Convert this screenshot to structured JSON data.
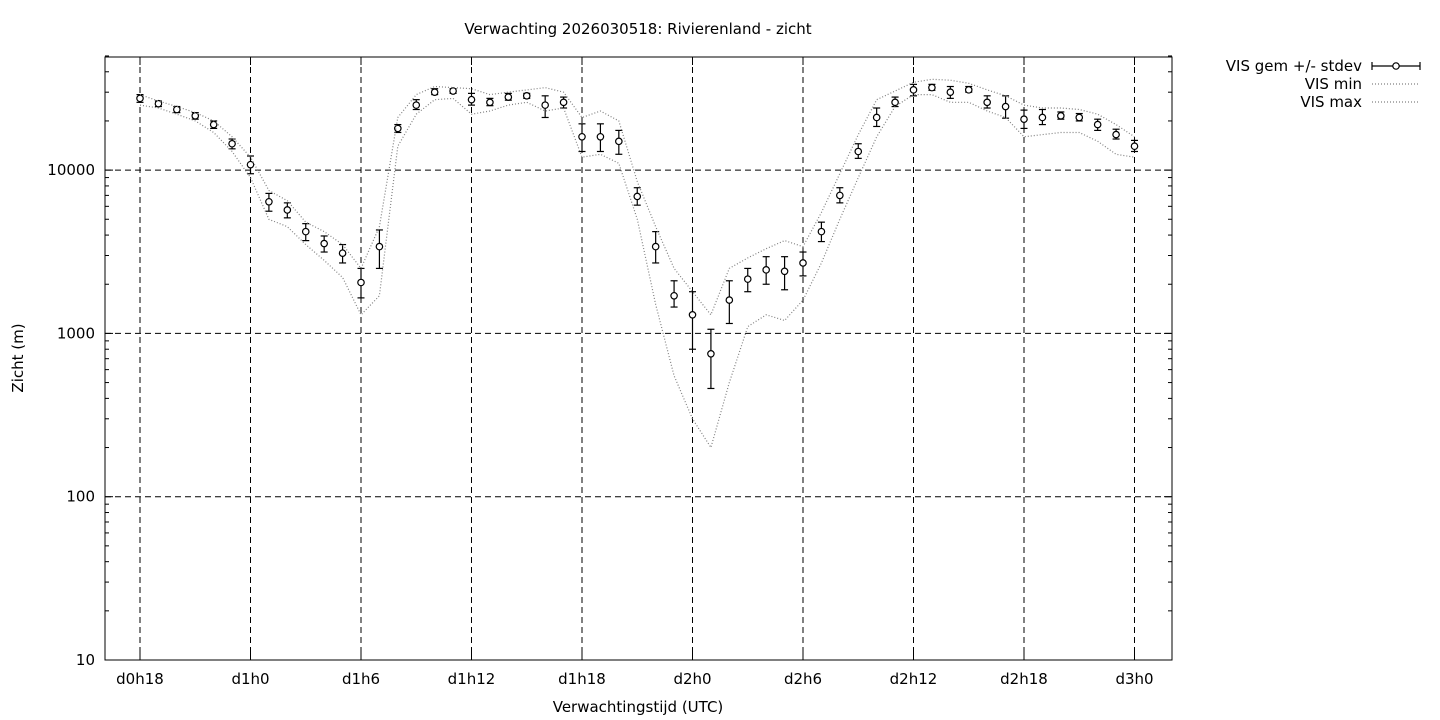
{
  "chart_data": {
    "type": "scatter",
    "title": "Verwachting 2026030518: Rivierenland - zicht",
    "xlabel": "Verwachtingstijd (UTC)",
    "ylabel": "Zicht (m)",
    "y_scale": "log",
    "ylim": [
      10,
      50000
    ],
    "xlim": [
      -2,
      56
    ],
    "grid": true,
    "legend_position": "top-right outside",
    "x_tick_labels": [
      "d0h18",
      "d1h0",
      "d1h6",
      "d1h12",
      "d1h18",
      "d2h0",
      "d2h6",
      "d2h12",
      "d2h18",
      "d3h0"
    ],
    "x_tick_values": [
      0,
      6,
      12,
      18,
      24,
      30,
      36,
      42,
      48,
      54
    ],
    "y_tick_labels": [
      "10",
      "100",
      "1000",
      "10000"
    ],
    "y_tick_values": [
      10,
      100,
      1000,
      10000
    ],
    "x": [
      0,
      1,
      2,
      3,
      4,
      5,
      6,
      7,
      8,
      9,
      10,
      11,
      12,
      13,
      14,
      15,
      16,
      17,
      18,
      19,
      20,
      21,
      22,
      23,
      24,
      25,
      26,
      27,
      28,
      29,
      30,
      31,
      32,
      33,
      34,
      35,
      36,
      37,
      38,
      39,
      40,
      41,
      42,
      43,
      44,
      45,
      46,
      47,
      48,
      49,
      50,
      51,
      52,
      53,
      54
    ],
    "series": [
      {
        "name": "VIS gem +/- stdev",
        "style": "points-errorbars",
        "values": [
          27500,
          25500,
          23500,
          21500,
          19000,
          14500,
          10800,
          6400,
          5700,
          4200,
          3550,
          3100,
          2050,
          3400,
          18000,
          25000,
          30000,
          30500,
          27000,
          26000,
          28000,
          28500,
          25000,
          26000,
          16000,
          16000,
          15000,
          6900,
          3400,
          1700,
          1300,
          750,
          1600,
          2150,
          2450,
          2400,
          2700,
          4200,
          7000,
          13000,
          21000,
          26000,
          31000,
          32000,
          30000,
          31000,
          26000,
          24500,
          20500,
          21000,
          21500,
          21000,
          19000,
          16500,
          14000
        ],
        "err_low": [
          26000,
          24500,
          22500,
          20500,
          18000,
          13500,
          9500,
          5600,
          5100,
          3700,
          3150,
          2700,
          1650,
          2500,
          17000,
          23500,
          29000,
          29500,
          25000,
          24800,
          26800,
          27500,
          21000,
          24000,
          13000,
          13000,
          12500,
          6100,
          2700,
          1450,
          800,
          460,
          1150,
          1800,
          2000,
          1850,
          2250,
          3650,
          6300,
          11800,
          18500,
          24500,
          28500,
          30800,
          27500,
          30000,
          24000,
          20800,
          18000,
          19000,
          20500,
          20000,
          17500,
          15500,
          13000
        ],
        "err_high": [
          29000,
          26500,
          24500,
          22500,
          20000,
          15500,
          12200,
          7200,
          6300,
          4700,
          3950,
          3500,
          2500,
          4300,
          19000,
          27000,
          31500,
          31500,
          29500,
          27500,
          29500,
          29500,
          28500,
          28000,
          19200,
          19200,
          17500,
          7800,
          4200,
          2100,
          1800,
          1060,
          2100,
          2500,
          2950,
          2950,
          3150,
          4800,
          7800,
          14500,
          24000,
          28000,
          33500,
          33500,
          32500,
          32500,
          28500,
          28500,
          23300,
          23500,
          22700,
          22200,
          20500,
          17800,
          15200
        ]
      },
      {
        "name": "VIS min",
        "style": "dotted",
        "values": [
          25000,
          24000,
          22000,
          20000,
          17000,
          13000,
          9000,
          5000,
          4500,
          3500,
          2800,
          2200,
          1300,
          1700,
          14000,
          22000,
          27000,
          27500,
          22000,
          23000,
          25000,
          26000,
          23000,
          24000,
          12000,
          12500,
          11000,
          5000,
          1500,
          550,
          300,
          200,
          500,
          1100,
          1300,
          1200,
          1600,
          2700,
          5000,
          9000,
          16000,
          24500,
          29000,
          29000,
          26000,
          26000,
          23000,
          21000,
          16000,
          16500,
          17000,
          17000,
          15000,
          12500,
          12000
        ]
      },
      {
        "name": "VIS max",
        "style": "dotted",
        "values": [
          29000,
          26500,
          24500,
          22500,
          20000,
          16000,
          12000,
          7500,
          6500,
          4800,
          4200,
          3500,
          2500,
          4500,
          21000,
          29000,
          32500,
          32000,
          31500,
          29000,
          30000,
          31000,
          32000,
          30000,
          21000,
          23000,
          20000,
          8500,
          4500,
          2500,
          1800,
          1300,
          2500,
          2900,
          3300,
          3700,
          3400,
          5500,
          9500,
          16500,
          27000,
          30500,
          34500,
          36000,
          35500,
          34000,
          31000,
          28500,
          25000,
          24000,
          24000,
          23500,
          22000,
          19000,
          16000
        ]
      }
    ]
  }
}
